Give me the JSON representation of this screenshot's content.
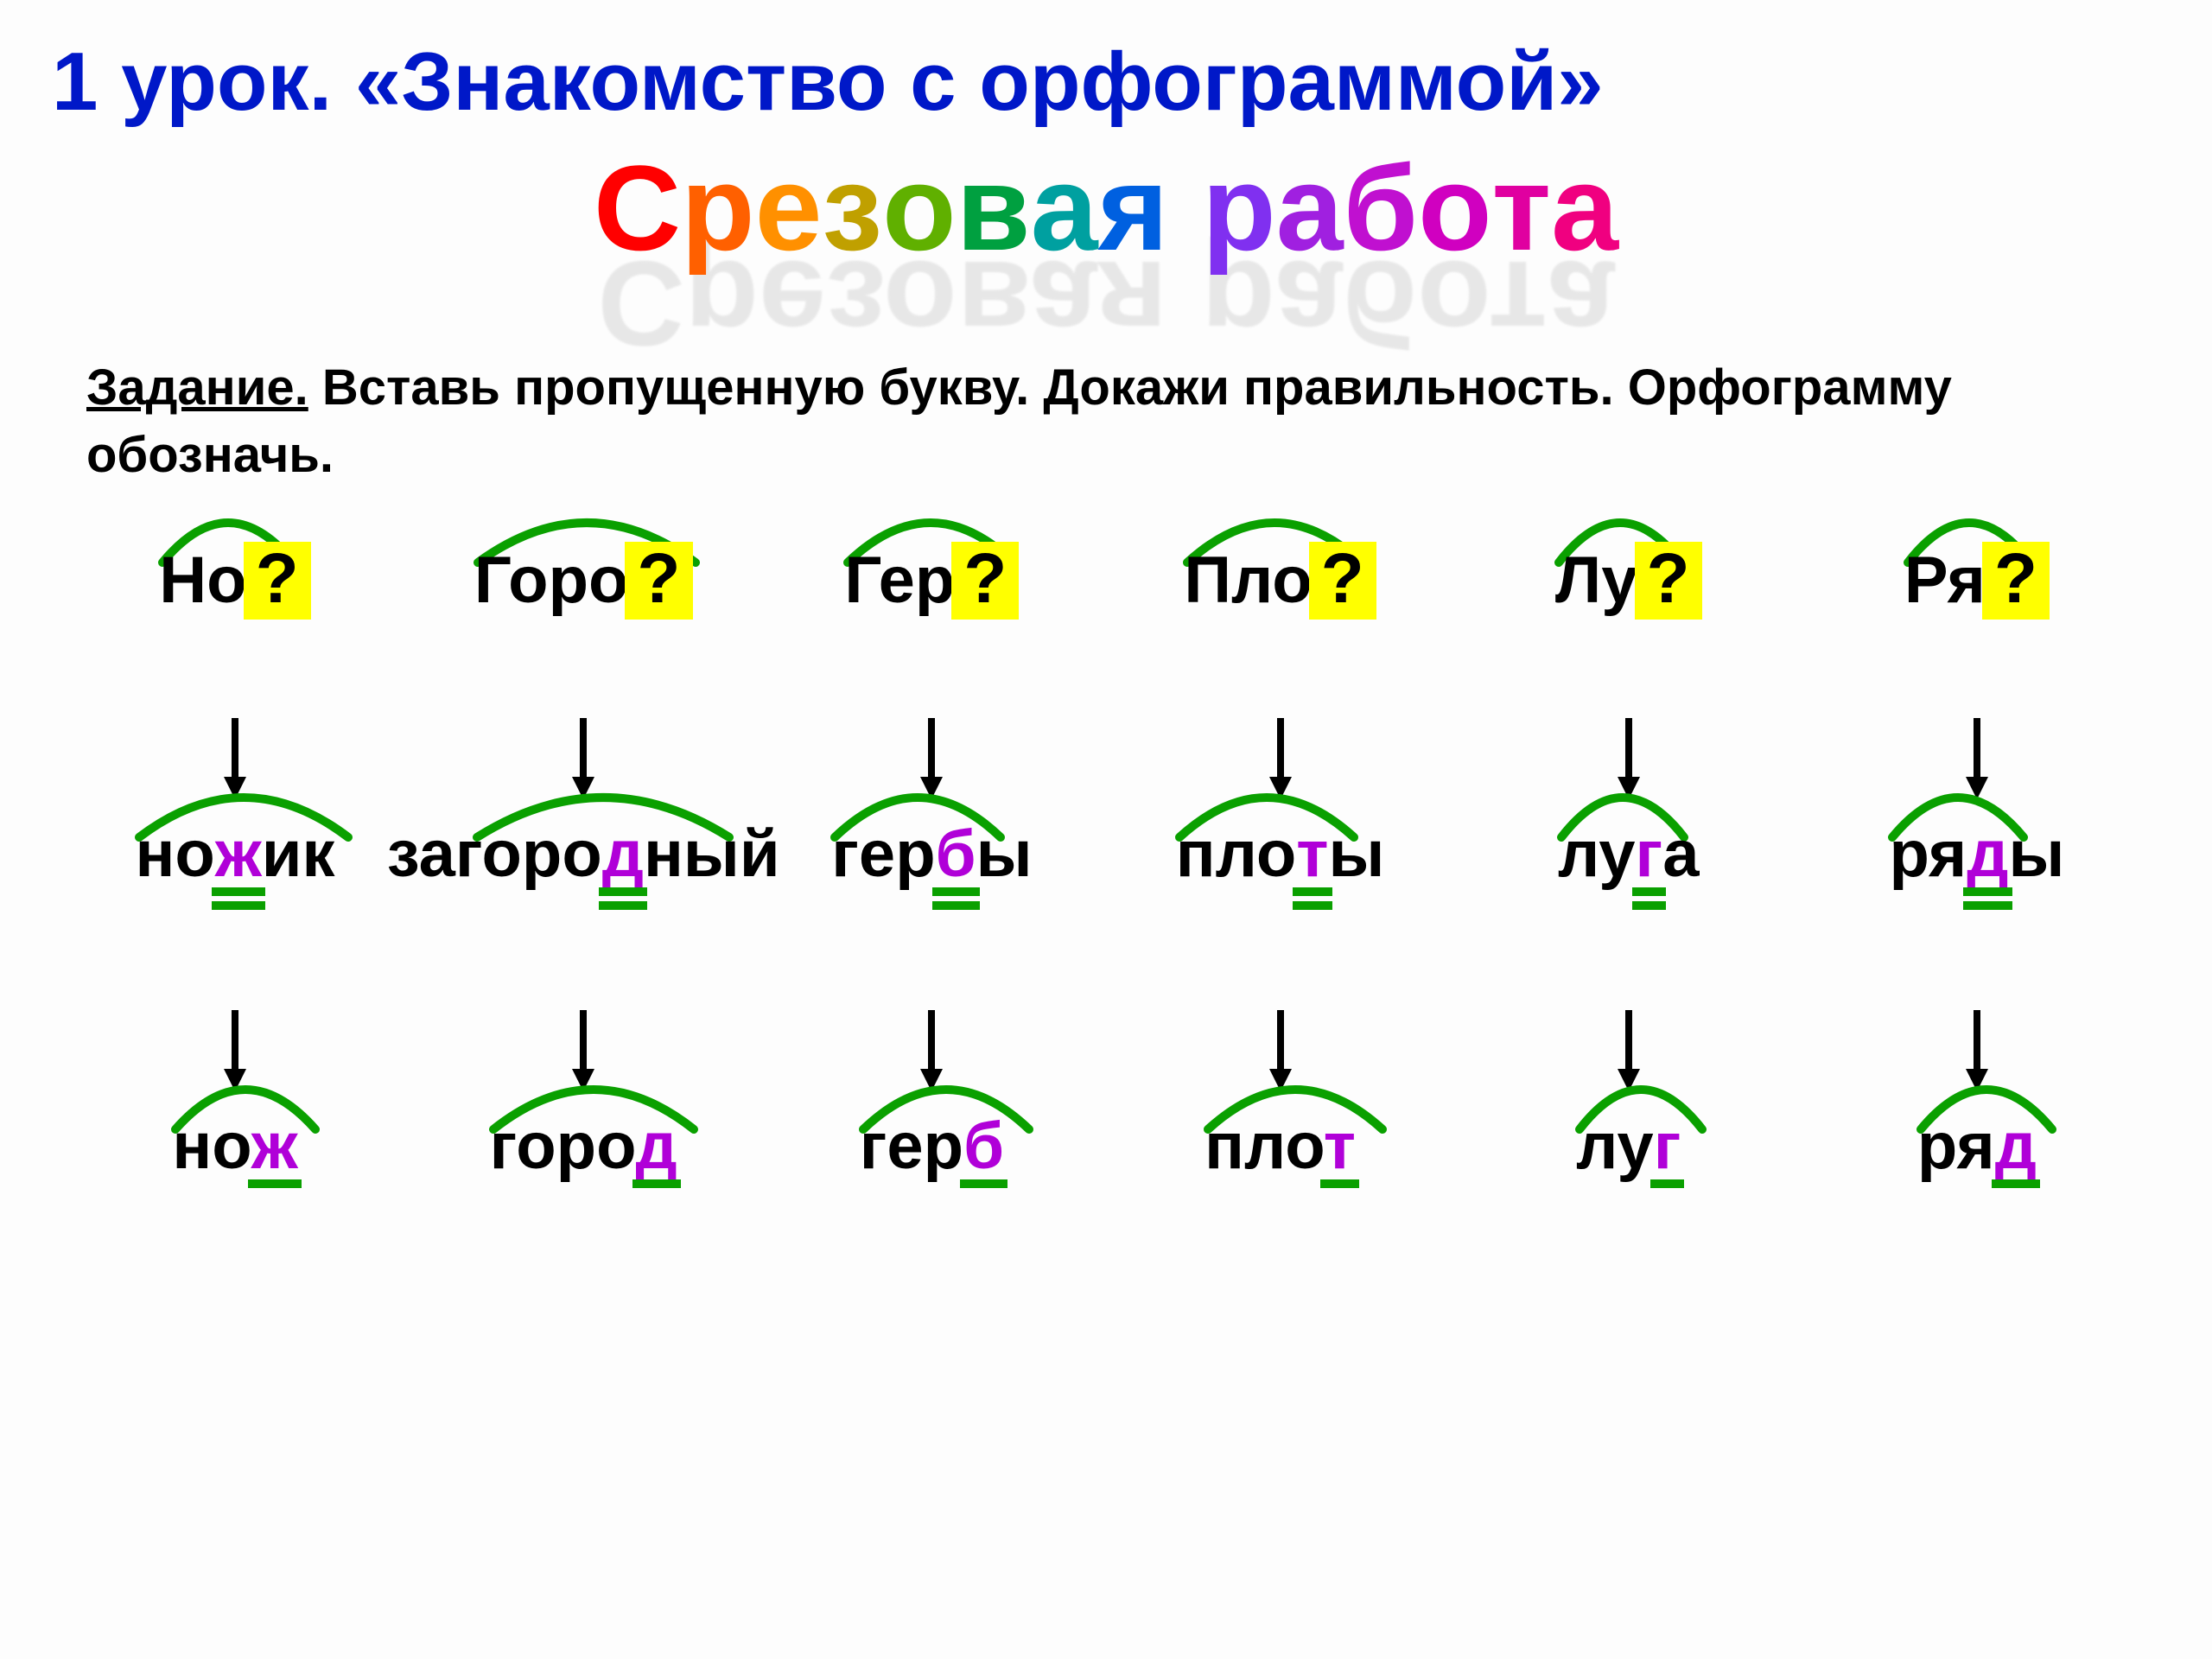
{
  "title1": "1 урок. «Знакомство с орфограммой»",
  "rainbow_text": "Срезовая работа",
  "rainbow_colors": [
    "#ff0000",
    "#ff6000",
    "#ff9000",
    "#c0a000",
    "#60b000",
    "#00a040",
    "#00a0a0",
    "#0060e0",
    "#4040ff",
    "#8030f0",
    "#a020e0",
    "#c010d0",
    "#d000c0",
    "#e000a0",
    "#f00080"
  ],
  "task_label": "Задание.",
  "task_text": "  Вставь  пропущенную  букву.  Докажи  правильность. Орфограмму обозначь.",
  "arc_color": "#0aa000",
  "arc_stroke": 10,
  "qmark": "?",
  "arrow_color": "#000000",
  "words": [
    {
      "top_prefix": "Но",
      "mid_pre": "но",
      "mid_hl": "ж",
      "mid_post": "ик",
      "bot_pre": "но",
      "bot_hl": "ж",
      "bot_post": "",
      "arc_top_w": 160,
      "arc_mid_w": 250,
      "arc_bot_w": 170,
      "double_mid": true
    },
    {
      "top_prefix": "Горо",
      "mid_pre": "загоро",
      "mid_hl": "д",
      "mid_post": "ный",
      "bot_pre": "горо",
      "bot_hl": "д",
      "bot_post": "",
      "arc_top_w": 260,
      "arc_mid_w": 300,
      "arc_mid_off": 100,
      "arc_bot_w": 240,
      "double_mid": true
    },
    {
      "top_prefix": "Гер",
      "mid_pre": "гер",
      "mid_hl": "б",
      "mid_post": "ы",
      "bot_pre": "гер",
      "bot_hl": "б",
      "bot_post": "",
      "arc_top_w": 200,
      "arc_mid_w": 200,
      "arc_bot_w": 200,
      "double_mid": true
    },
    {
      "top_prefix": "Пло",
      "mid_pre": "пло",
      "mid_hl": "т",
      "mid_post": "ы",
      "bot_pre": "пло",
      "bot_hl": "т",
      "bot_post": "",
      "arc_top_w": 210,
      "arc_mid_w": 210,
      "arc_bot_w": 210,
      "double_mid": true
    },
    {
      "top_prefix": "Лу",
      "mid_pre": "лу",
      "mid_hl": "г",
      "mid_post": "а",
      "bot_pre": "лу",
      "bot_hl": "г",
      "bot_post": "",
      "arc_top_w": 150,
      "arc_mid_w": 150,
      "arc_bot_w": 150,
      "double_mid": true
    },
    {
      "top_prefix": "Ря",
      "mid_pre": "ря",
      "mid_hl": "д",
      "mid_post": "ы",
      "bot_pre": "ря",
      "bot_hl": "д",
      "bot_post": "",
      "arc_top_w": 150,
      "arc_mid_w": 160,
      "arc_bot_w": 160,
      "double_mid": true
    }
  ]
}
